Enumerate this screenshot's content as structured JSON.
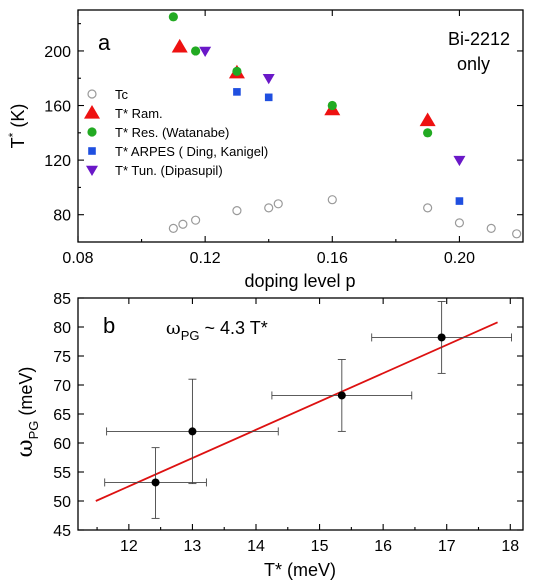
{
  "chart_data": [
    {
      "type": "scatter",
      "panel": "a",
      "annotation": [
        "Bi-2212",
        "only"
      ],
      "xlabel": "doping level p",
      "ylabel": "T* (K)",
      "xlim": [
        0.08,
        0.22
      ],
      "ylim": [
        60,
        230
      ],
      "xticks": [
        "0.08",
        "0.12",
        "0.16",
        "0.20"
      ],
      "xtick_values": [
        0.08,
        0.12,
        0.16,
        0.2
      ],
      "yticks": [
        "80",
        "120",
        "160",
        "200"
      ],
      "ytick_values": [
        80,
        120,
        160,
        200
      ],
      "legend_position": "left",
      "series": [
        {
          "name": "Tc",
          "marker": "open-circle",
          "color": "#9a9a9a",
          "x": [
            0.11,
            0.113,
            0.117,
            0.13,
            0.14,
            0.143,
            0.16,
            0.19,
            0.2,
            0.21,
            0.218
          ],
          "y": [
            70,
            73,
            76,
            83,
            85,
            88,
            91,
            85,
            74,
            70,
            66
          ]
        },
        {
          "name": "T* Ram.",
          "marker": "triangle-up",
          "color": "#ee1111",
          "x": [
            0.112,
            0.13,
            0.16,
            0.19
          ],
          "y": [
            203,
            184,
            157,
            149
          ]
        },
        {
          "name": "T* Res. (Watanabe)",
          "marker": "circle",
          "color": "#22aa22",
          "x": [
            0.11,
            0.117,
            0.13,
            0.16,
            0.19
          ],
          "y": [
            225,
            200,
            185,
            160,
            140
          ]
        },
        {
          "name": "T* ARPES ( Ding, Kanigel)",
          "marker": "square",
          "color": "#1f4fe0",
          "x": [
            0.13,
            0.14,
            0.2
          ],
          "y": [
            170,
            166,
            90
          ]
        },
        {
          "name": "T* Tun. (Dipasupil)",
          "marker": "triangle-down",
          "color": "#6a18c8",
          "x": [
            0.12,
            0.14,
            0.2
          ],
          "y": [
            200,
            180,
            120
          ]
        }
      ]
    },
    {
      "type": "scatter",
      "panel": "b",
      "annotation": "ωPG ~ 4.3 T*",
      "xlabel": "T* (meV)",
      "ylabel": "ωPG (meV)",
      "xlim": [
        11.2,
        18.2
      ],
      "ylim": [
        45,
        85
      ],
      "xticks": [
        "12",
        "13",
        "14",
        "15",
        "16",
        "17",
        "18"
      ],
      "xtick_values": [
        12,
        13,
        14,
        15,
        16,
        17,
        18
      ],
      "yticks": [
        "45",
        "50",
        "55",
        "60",
        "65",
        "70",
        "75",
        "80",
        "85"
      ],
      "ytick_values": [
        45,
        50,
        55,
        60,
        65,
        70,
        75,
        80,
        85
      ],
      "points": {
        "x": [
          12.42,
          13.0,
          15.35,
          16.92
        ],
        "y": [
          53.2,
          62.0,
          68.2,
          78.2
        ],
        "x_err": [
          0.8,
          1.35,
          1.1,
          1.1
        ],
        "y_err_up": [
          6.0,
          9.0,
          6.2,
          6.2
        ],
        "y_err_down": [
          6.2,
          9.0,
          6.2,
          6.2
        ],
        "color": "#000000"
      },
      "fit_line": {
        "x": [
          11.48,
          17.8
        ],
        "y": [
          50.0,
          80.8
        ],
        "color": "#dd1111"
      }
    }
  ]
}
